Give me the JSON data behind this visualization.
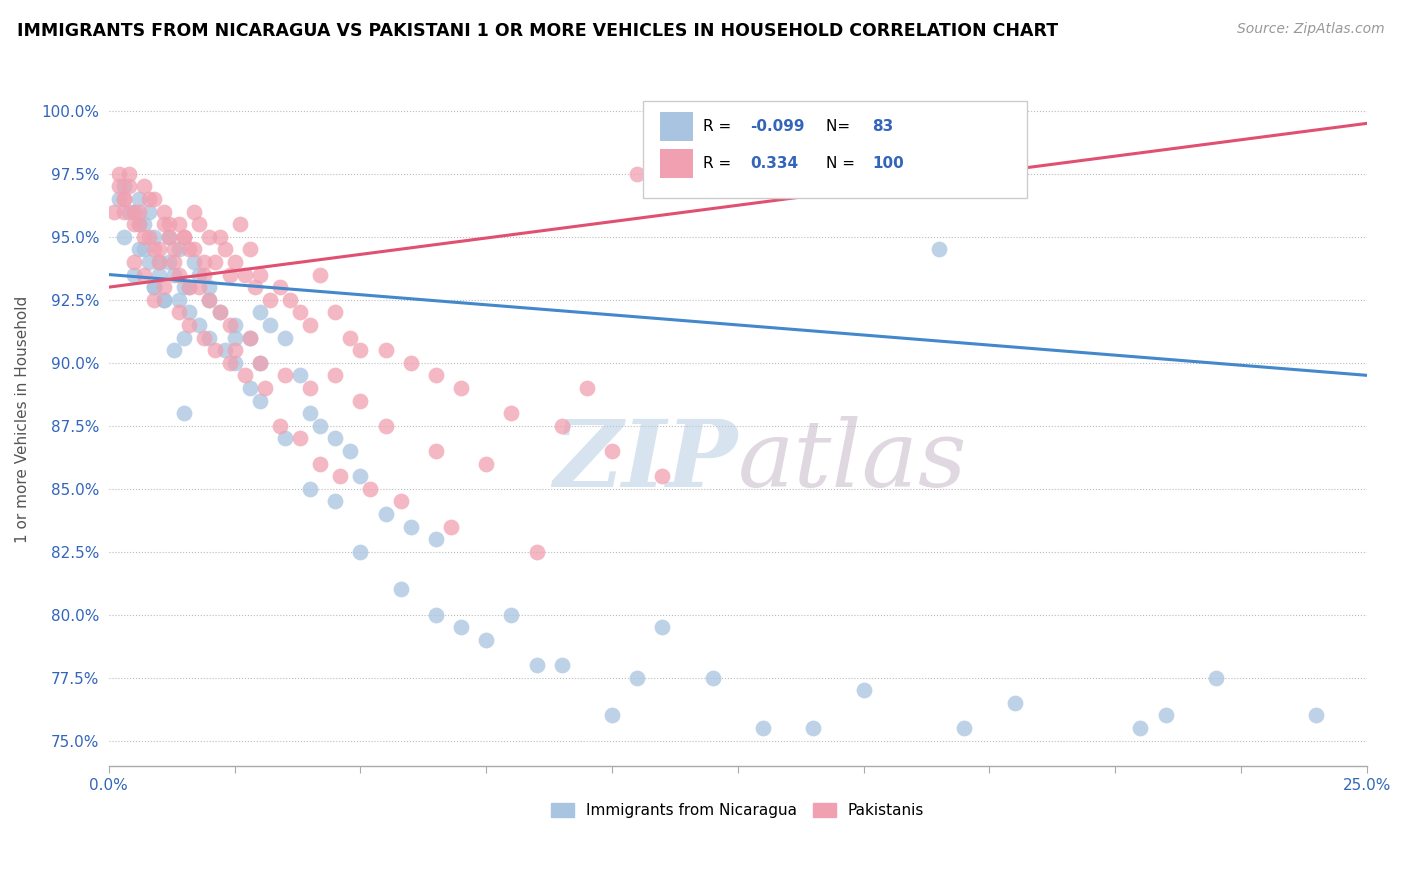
{
  "title": "IMMIGRANTS FROM NICARAGUA VS PAKISTANI 1 OR MORE VEHICLES IN HOUSEHOLD CORRELATION CHART",
  "source": "Source: ZipAtlas.com",
  "ylabel_label": "1 or more Vehicles in Household",
  "legend_nicaragua": "Immigrants from Nicaragua",
  "legend_pakistan": "Pakistanis",
  "r_nicaragua": -0.099,
  "n_nicaragua": 83,
  "r_pakistan": 0.334,
  "n_pakistan": 100,
  "color_nicaragua": "#a8c4e0",
  "color_pakistan": "#f0a0b0",
  "color_nicaragua_line": "#4488cc",
  "color_pakistan_line": "#e05070",
  "watermark_zip": "ZIP",
  "watermark_atlas": "atlas",
  "watermark_color_zip": "#b8cce4",
  "watermark_color_atlas": "#c8b8c8",
  "xlim": [
    0.0,
    25.0
  ],
  "ylim": [
    74.0,
    101.5
  ],
  "blue_points_x": [
    0.2,
    0.3,
    0.5,
    0.6,
    0.7,
    0.8,
    0.9,
    1.0,
    1.1,
    1.2,
    1.3,
    1.4,
    1.5,
    1.6,
    1.7,
    1.8,
    2.0,
    2.2,
    2.5,
    2.8,
    3.0,
    3.2,
    3.5,
    3.8,
    4.0,
    4.5,
    5.0,
    5.5,
    6.0,
    6.5,
    7.0,
    8.0,
    9.0,
    10.0,
    11.0,
    13.0,
    14.0,
    16.5,
    20.5,
    0.3,
    0.5,
    0.6,
    0.7,
    0.8,
    0.9,
    1.0,
    1.2,
    1.4,
    1.5,
    1.6,
    1.8,
    2.0,
    2.3,
    2.5,
    2.8,
    3.0,
    3.5,
    4.0,
    4.5,
    5.0,
    5.8,
    6.5,
    7.5,
    8.5,
    10.5,
    12.0,
    15.0,
    18.0,
    22.0,
    24.0,
    0.4,
    0.6,
    0.9,
    1.1,
    1.3,
    1.5,
    2.0,
    2.5,
    3.0,
    4.2,
    4.8,
    17.0,
    21.0
  ],
  "blue_points_y": [
    96.5,
    95.0,
    93.5,
    95.5,
    94.5,
    96.0,
    93.0,
    94.0,
    92.5,
    95.0,
    93.5,
    94.5,
    93.0,
    92.0,
    94.0,
    93.5,
    93.0,
    92.0,
    91.5,
    91.0,
    92.0,
    91.5,
    91.0,
    89.5,
    88.0,
    87.0,
    85.5,
    84.0,
    83.5,
    83.0,
    79.5,
    80.0,
    78.0,
    76.0,
    79.5,
    75.5,
    75.5,
    94.5,
    75.5,
    97.0,
    96.0,
    96.5,
    95.5,
    94.0,
    95.0,
    93.5,
    94.0,
    92.5,
    91.0,
    93.0,
    91.5,
    91.0,
    90.5,
    90.0,
    89.0,
    88.5,
    87.0,
    85.0,
    84.5,
    82.5,
    81.0,
    80.0,
    79.0,
    78.0,
    77.5,
    77.5,
    77.0,
    76.5,
    77.5,
    76.0,
    96.0,
    94.5,
    93.0,
    92.5,
    90.5,
    88.0,
    92.5,
    91.0,
    90.0,
    87.5,
    86.5,
    75.5,
    76.0
  ],
  "pink_points_x": [
    0.1,
    0.2,
    0.3,
    0.4,
    0.5,
    0.6,
    0.7,
    0.8,
    0.9,
    1.0,
    1.1,
    1.2,
    1.3,
    1.4,
    1.5,
    1.6,
    1.7,
    1.8,
    1.9,
    2.0,
    2.1,
    2.2,
    2.3,
    2.4,
    2.5,
    2.6,
    2.7,
    2.8,
    2.9,
    3.0,
    3.2,
    3.4,
    3.6,
    3.8,
    4.0,
    4.2,
    4.5,
    4.8,
    5.0,
    5.5,
    6.0,
    6.5,
    7.0,
    8.0,
    9.0,
    9.5,
    10.0,
    11.0,
    0.2,
    0.3,
    0.4,
    0.5,
    0.6,
    0.7,
    0.8,
    0.9,
    1.0,
    1.1,
    1.2,
    1.3,
    1.4,
    1.5,
    1.6,
    1.7,
    1.8,
    1.9,
    2.0,
    2.2,
    2.4,
    2.5,
    2.8,
    3.0,
    3.5,
    4.0,
    4.5,
    5.0,
    5.5,
    6.5,
    7.5,
    0.3,
    0.5,
    0.7,
    0.9,
    1.1,
    1.4,
    1.6,
    1.9,
    2.1,
    2.4,
    2.7,
    3.1,
    3.4,
    3.8,
    4.2,
    4.6,
    5.2,
    5.8,
    6.8,
    8.5,
    10.5
  ],
  "pink_points_y": [
    96.0,
    97.5,
    96.5,
    97.0,
    96.0,
    95.5,
    97.0,
    95.0,
    96.5,
    94.5,
    96.0,
    95.5,
    94.0,
    95.5,
    95.0,
    94.5,
    96.0,
    95.5,
    93.5,
    95.0,
    94.0,
    95.0,
    94.5,
    93.5,
    94.0,
    95.5,
    93.5,
    94.5,
    93.0,
    93.5,
    92.5,
    93.0,
    92.5,
    92.0,
    91.5,
    93.5,
    92.0,
    91.0,
    90.5,
    90.5,
    90.0,
    89.5,
    89.0,
    88.0,
    87.5,
    89.0,
    86.5,
    85.5,
    97.0,
    96.0,
    97.5,
    95.5,
    96.0,
    95.0,
    96.5,
    94.5,
    94.0,
    95.5,
    95.0,
    94.5,
    93.5,
    95.0,
    93.0,
    94.5,
    93.0,
    94.0,
    92.5,
    92.0,
    91.5,
    90.5,
    91.0,
    90.0,
    89.5,
    89.0,
    89.5,
    88.5,
    87.5,
    86.5,
    86.0,
    96.5,
    94.0,
    93.5,
    92.5,
    93.0,
    92.0,
    91.5,
    91.0,
    90.5,
    90.0,
    89.5,
    89.0,
    87.5,
    87.0,
    86.0,
    85.5,
    85.0,
    84.5,
    83.5,
    82.5,
    97.5
  ],
  "yticks": [
    75.0,
    77.5,
    80.0,
    82.5,
    85.0,
    87.5,
    90.0,
    92.5,
    95.0,
    97.5,
    100.0
  ],
  "xticks": [
    0.0,
    2.5,
    5.0,
    7.5,
    10.0,
    12.5,
    15.0,
    17.5,
    20.0,
    22.5,
    25.0
  ]
}
